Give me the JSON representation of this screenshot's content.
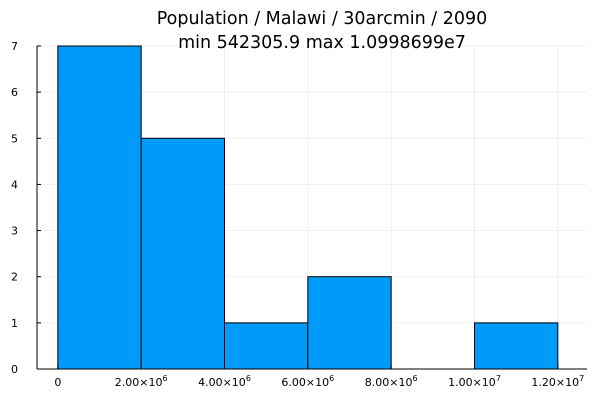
{
  "chart_data": {
    "type": "bar",
    "title_line1": "Population / Malawi / 30arcmin / 2090",
    "title_line2": "min 542305.9  max 1.0998699e7",
    "bin_edges": [
      0,
      2000000,
      4000000,
      6000000,
      8000000,
      10000000,
      12000000
    ],
    "values": [
      7,
      5,
      1,
      2,
      0,
      1
    ],
    "xlim": [
      -500000,
      12700000
    ],
    "ylim": [
      0,
      7
    ],
    "x_ticks": [
      {
        "value": 0,
        "mant": "0",
        "exp": ""
      },
      {
        "value": 2000000,
        "mant": "2.00×10",
        "exp": "6"
      },
      {
        "value": 4000000,
        "mant": "4.00×10",
        "exp": "6"
      },
      {
        "value": 6000000,
        "mant": "6.00×10",
        "exp": "6"
      },
      {
        "value": 8000000,
        "mant": "8.00×10",
        "exp": "6"
      },
      {
        "value": 10000000,
        "mant": "1.00×10",
        "exp": "7"
      },
      {
        "value": 12000000,
        "mant": "1.20×10",
        "exp": "7"
      }
    ],
    "y_ticks": [
      0,
      1,
      2,
      3,
      4,
      5,
      6,
      7
    ],
    "grid": true,
    "bar_color": "#009af9"
  }
}
